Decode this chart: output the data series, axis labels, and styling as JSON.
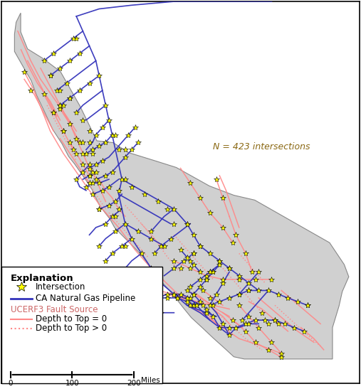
{
  "annotation": "N = 423 intersections",
  "annotation_color": "#8B6914",
  "explanation_title": "Explanation",
  "pipeline_color": "#3333BB",
  "fault_solid_color": "#FF8888",
  "fault_dot_color": "#FF8888",
  "intersection_color": "#FFFF00",
  "intersection_edge": "#000000",
  "ca_fill": "#d0d0d0",
  "ca_edge": "#888888",
  "background_color": "#ffffff",
  "border_color": "#000000",
  "figsize": [
    5.07,
    5.47
  ],
  "dpi": 100,
  "xlim": [
    -124.8,
    -113.8
  ],
  "ylim": [
    32.0,
    42.3
  ],
  "lon_scale": 1.3
}
